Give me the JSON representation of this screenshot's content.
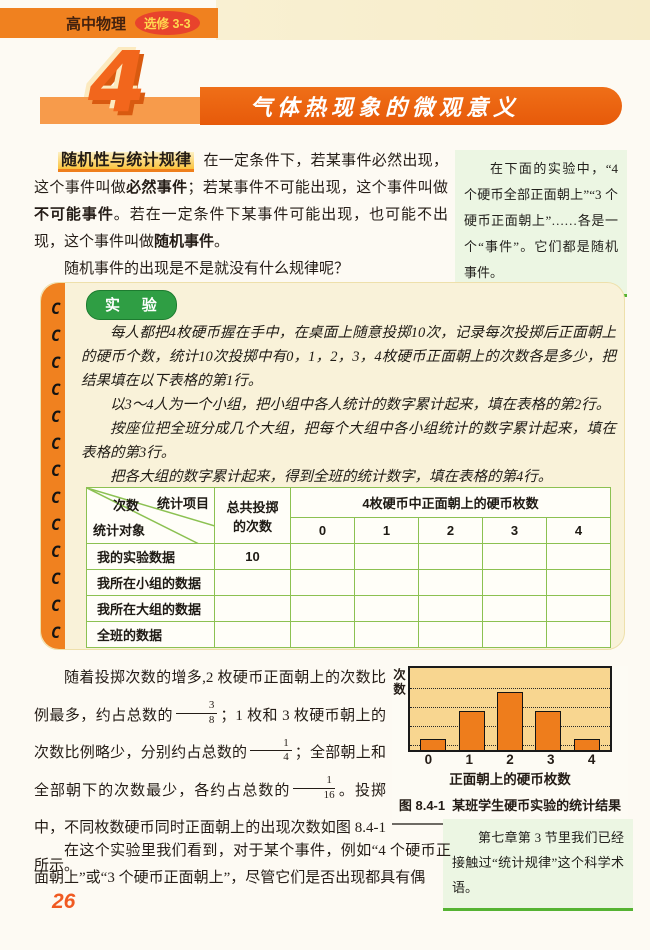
{
  "header": {
    "course": "高中物理",
    "edition": "选修 3-3"
  },
  "chapter": {
    "number": "4",
    "title": "气体热现象的微观意义"
  },
  "intro": {
    "heading": "随机性与统计规律",
    "seg1": "在一定条件下，若某事件必然出现，这个事件叫做",
    "bold1": "必然事件",
    "seg2": "；若某事件不可能出现，这个事件叫做",
    "bold2": "不可能事件",
    "seg3": "。若在一定条件下某事件可能出现，也可能不出现，这个事件叫做",
    "bold3": "随机事件",
    "seg4": "。",
    "question": "随机事件的出现是不是就没有什么规律呢？"
  },
  "side_note_1": {
    "text": "在下面的实验中，“4 个硬币全部正面朝上”“3 个硬币正面朝上”……各是一个“事件”。它们都是随机事件。"
  },
  "experiment": {
    "badge": "实 验",
    "p1": "每人都把4枚硬币握在手中，在桌面上随意投掷10次，记录每次投掷后正面朝上的硬币个数，统计10次投掷中有0，1，2，3，4枚硬币正面朝上的次数各是多少，把结果填在以下表格的第1行。",
    "p2": "以3～4人为一个小组，把小组中各人统计的数字累计起来，填在表格的第2行。",
    "p3": "按座位把全班分成几个大组，把每个大组中各小组统计的数字累计起来，填在表格的第3行。",
    "p4": "把各大组的数字累计起来，得到全班的统计数字，填在表格的第4行。",
    "table": {
      "corner": {
        "top": "统计项目",
        "mid": "次数",
        "bottom": "统计对象"
      },
      "col_total": "总共投掷的次数",
      "col_group": "4枚硬币中正面朝上的硬币枚数",
      "sub_cols": [
        "0",
        "1",
        "2",
        "3",
        "4"
      ],
      "rows": [
        {
          "label": "我的实验数据",
          "total": "10"
        },
        {
          "label": "我所在小组的数据",
          "total": ""
        },
        {
          "label": "我所在大组的数据",
          "total": ""
        },
        {
          "label": "全班的数据",
          "total": ""
        }
      ]
    }
  },
  "analysis": {
    "seg1": "随着投掷次数的增多,2 枚硬币正面朝上的次数比例最多，约占总数的",
    "frac1": {
      "num": "3",
      "den": "8"
    },
    "seg2": "；1 枚和 3 枚硬币朝上的次数比例略少，分别约占总数的",
    "frac2": {
      "num": "1",
      "den": "4"
    },
    "seg3": "；全部朝上和全部朝下的次数最少，各约占总数的",
    "frac3": {
      "num": "1",
      "den": "16"
    },
    "seg4": "。投掷中，不同枚数硬币同时正面朝上的出现次数如图 8.4-1 所示。"
  },
  "chart_data": {
    "type": "bar",
    "title": "图8.4-1 某班学生硬币实验的统计结果",
    "categories": [
      "0",
      "1",
      "2",
      "3",
      "4"
    ],
    "values": [
      1,
      4,
      6,
      4,
      1
    ],
    "bar_heights_pct": [
      13,
      48,
      71,
      48,
      13
    ],
    "gridlines_pct": [
      5,
      28,
      51,
      74
    ],
    "xlabel": "正面朝上的硬币枚数",
    "ylabel": "次数",
    "grid": "dotted-horizontal",
    "legend": "none",
    "note": "y轴无数值刻度；柱高比例约 1:4:6:4:1（对应 1/16、1/4、3/8、1/4、1/16）",
    "bar_color": "#ee7d1c",
    "plot_bg": "#f8d690"
  },
  "figure": {
    "caption_label": "图 8.4-1",
    "caption_text": "某班学生硬币实验的统计结果"
  },
  "side_note_2": {
    "text": "第七章第 3 节里我们已经接触过“统计规律”这个科学术语。"
  },
  "closing": {
    "text": "在这个实验里我们看到，对于某个事件，例如“4 个硬币正面朝上”或“3 个硬币正面朝上”，尽管它们是否出现都具有偶"
  },
  "page": {
    "number": "26"
  },
  "colors": {
    "header_orange": "#f0811f",
    "banner_orange": "#e75a0a",
    "edition_red": "#e8432c",
    "highlight_yellow": "#fac33d",
    "experiment_green": "#2f9e44",
    "table_border_green": "#8cc152",
    "note_bg_green": "#ecf6e3",
    "note_border_green": "#55b332",
    "experiment_bg": "#f9f2d9",
    "page_number_orange": "#f05a22"
  }
}
